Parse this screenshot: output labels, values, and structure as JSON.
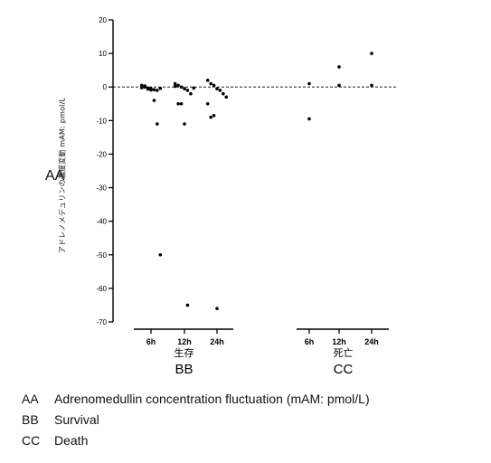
{
  "chart_data": {
    "type": "scatter",
    "ylim": [
      -70,
      20
    ],
    "yticks": [
      20,
      10,
      0,
      -10,
      -20,
      -30,
      -40,
      -50,
      -60,
      -70
    ],
    "reference_line": 0,
    "ylabel": "アドレノメデュリンの濃度変動 mAM: pmol/L",
    "groups": [
      {
        "label": "生存",
        "code": "BB",
        "categories": [
          {
            "name": "6h",
            "values": [
              0.5,
              0,
              -0.3,
              -0.5,
              -0.8,
              -1,
              -0.4,
              -0.2,
              0.3,
              -0.6,
              -0.9,
              -4,
              -11,
              -50
            ]
          },
          {
            "name": "12h",
            "values": [
              1,
              0.5,
              0,
              -0.5,
              -1,
              -2,
              -0.3,
              0.2,
              -5,
              -5,
              -11,
              -65
            ]
          },
          {
            "name": "24h",
            "values": [
              2,
              1,
              0.5,
              -0.5,
              -1,
              -2,
              -3,
              -5,
              -9,
              -8.5,
              -66
            ]
          }
        ]
      },
      {
        "label": "死亡",
        "code": "CC",
        "categories": [
          {
            "name": "6h",
            "values": [
              1,
              -9.5
            ]
          },
          {
            "name": "12h",
            "values": [
              6,
              0.5
            ]
          },
          {
            "name": "24h",
            "values": [
              10,
              0.5
            ]
          }
        ]
      }
    ]
  },
  "labels": {
    "aa": "AA"
  },
  "legend": [
    {
      "key": "AA",
      "text": "Adrenomedullin concentration fluctuation (mAM: pmol/L)"
    },
    {
      "key": "BB",
      "text": "Survival"
    },
    {
      "key": "CC",
      "text": "Death"
    }
  ]
}
